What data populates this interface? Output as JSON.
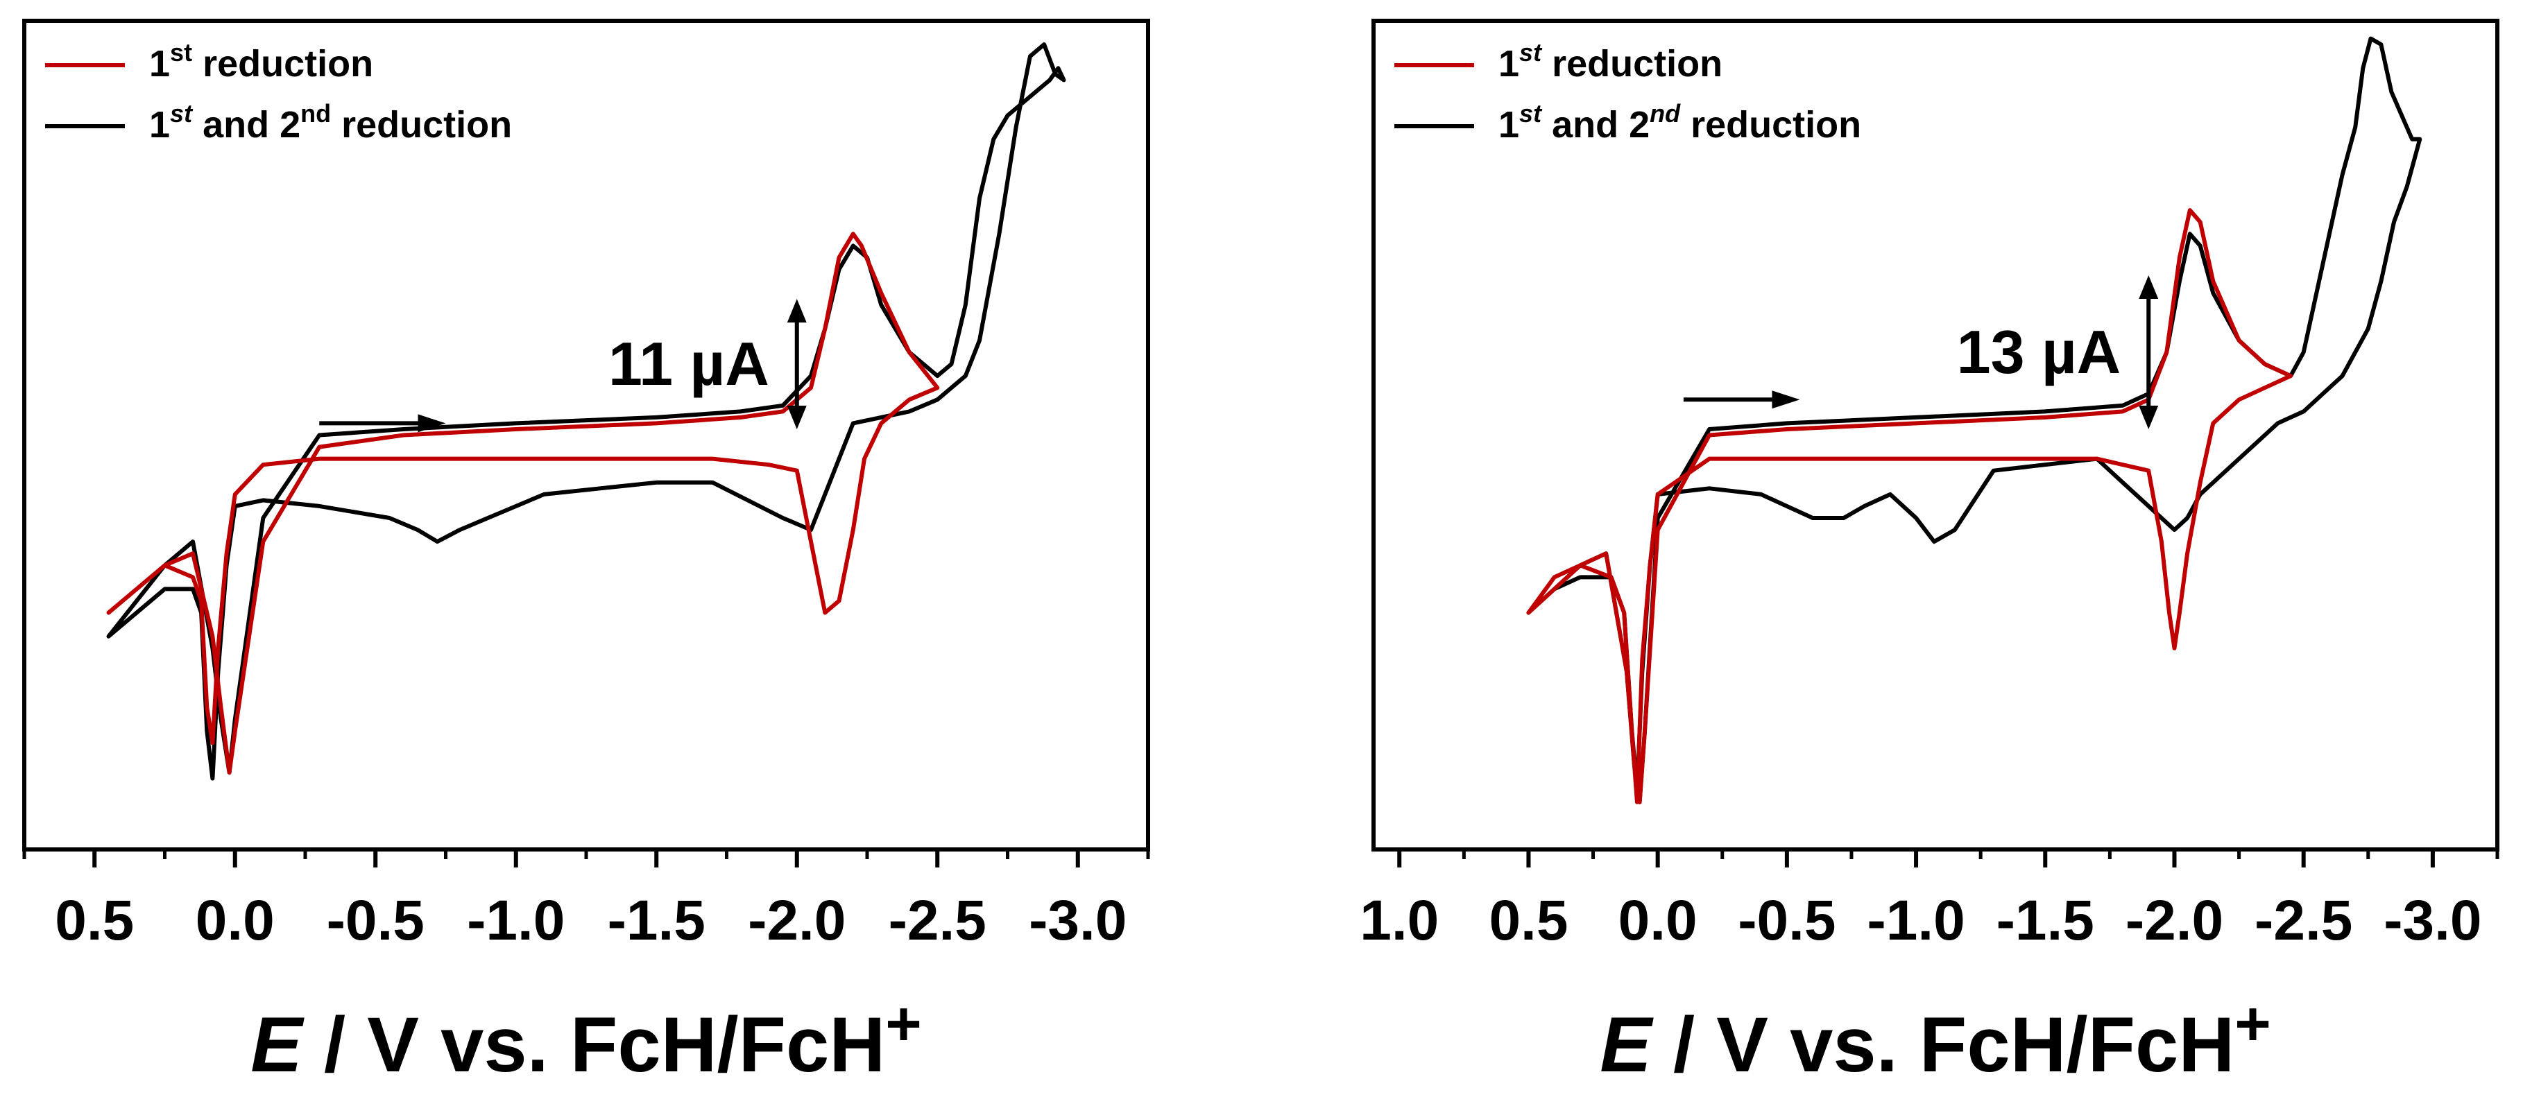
{
  "chart_data": [
    {
      "type": "line",
      "title": "",
      "xlabel_italic": "E",
      "xlabel_rest": " / V vs. FcH/FcH",
      "xlabel_sup": "+",
      "ylabel": "",
      "x_reversed": true,
      "xlim": [
        0.75,
        -3.25
      ],
      "ylim": [
        -30,
        40
      ],
      "xticks": [
        0.5,
        0.0,
        -0.5,
        -1.0,
        -1.5,
        -2.0,
        -2.5,
        -3.0
      ],
      "xtick_labels": [
        "0.5",
        "0.0",
        "-0.5",
        "-1.0",
        "-1.5",
        "-2.0",
        "-2.5",
        "-3.0"
      ],
      "legend": {
        "position": "top-left",
        "entries": [
          {
            "base": "1",
            "sup": "st",
            "sup_italic": false,
            "mid": " reduction",
            "sup2": "",
            "sup2_italic": false,
            "tail": "",
            "color": "#c00000"
          },
          {
            "base": "1",
            "sup": "st",
            "sup_italic": true,
            "mid": " and 2",
            "sup2": "nd",
            "sup2_italic": false,
            "tail": " reduction",
            "color": "#000000"
          }
        ]
      },
      "annotation": {
        "label": "11 µA",
        "scale_uA": 11,
        "arrow_x": -2.0,
        "arrow_y_center": 11
      },
      "scan_arrow": {
        "from_x": -0.3,
        "to_x": -0.75,
        "y": 6
      },
      "series": [
        {
          "name": "1st reduction",
          "color": "#c00000",
          "x": [
            0.45,
            0.35,
            0.25,
            0.15,
            0.08,
            0.05,
            0.02,
            0.0,
            -0.1,
            -0.3,
            -0.6,
            -1.0,
            -1.5,
            -1.8,
            -1.95,
            -2.05,
            -2.1,
            -2.15,
            -2.2,
            -2.23,
            -2.3,
            -2.4,
            -2.5,
            -2.4,
            -2.3,
            -2.24,
            -2.2,
            -2.15,
            -2.1,
            -2.05,
            -2.0,
            -1.9,
            -1.7,
            -1.4,
            -1.0,
            -0.6,
            -0.3,
            -0.1,
            0.0,
            0.03,
            0.06,
            0.08,
            0.1,
            0.12,
            0.15,
            0.25,
            0.35,
            0.45
          ],
          "y": [
            -10,
            -8,
            -6,
            -5,
            -12,
            -18,
            -23.5,
            -20,
            -4,
            4,
            5,
            5.5,
            6,
            6.5,
            7,
            9,
            14,
            20,
            22,
            21,
            17,
            12,
            9,
            8,
            6,
            3,
            -3,
            -9,
            -10,
            -4,
            2,
            2.5,
            3,
            3,
            3,
            3,
            3,
            2.5,
            0,
            -5,
            -13,
            -21,
            -18,
            -9,
            -7,
            -6,
            -8,
            -10
          ]
        },
        {
          "name": "1st and 2nd reduction",
          "color": "#000000",
          "x": [
            0.45,
            0.35,
            0.25,
            0.15,
            0.08,
            0.05,
            0.02,
            0.0,
            -0.1,
            -0.3,
            -0.6,
            -1.0,
            -1.5,
            -1.8,
            -1.95,
            -2.05,
            -2.1,
            -2.15,
            -2.2,
            -2.25,
            -2.3,
            -2.4,
            -2.5,
            -2.55,
            -2.6,
            -2.65,
            -2.7,
            -2.75,
            -2.8,
            -2.85,
            -2.9,
            -2.93,
            -2.95,
            -2.92,
            -2.88,
            -2.83,
            -2.78,
            -2.72,
            -2.65,
            -2.6,
            -2.55,
            -2.5,
            -2.4,
            -2.3,
            -2.2,
            -2.15,
            -2.1,
            -2.05,
            -1.95,
            -1.7,
            -1.5,
            -1.3,
            -1.1,
            -0.9,
            -0.8,
            -0.72,
            -0.65,
            -0.55,
            -0.3,
            -0.1,
            0.0,
            0.03,
            0.06,
            0.08,
            0.1,
            0.12,
            0.15,
            0.25,
            0.35,
            0.45
          ],
          "y": [
            -12,
            -9,
            -6,
            -4,
            -13,
            -19,
            -23.5,
            -19,
            -2,
            5,
            5.5,
            6,
            6.5,
            7,
            7.5,
            10,
            14,
            19,
            21,
            20,
            16,
            12,
            10,
            11,
            16,
            25,
            30,
            32,
            33,
            34,
            35,
            36,
            35,
            35.5,
            38,
            37,
            31,
            22,
            13,
            10,
            9,
            8,
            7,
            6.5,
            6,
            3,
            0,
            -3,
            -2,
            1,
            1,
            0.5,
            0,
            -2,
            -3,
            -4,
            -3,
            -2,
            -1,
            -0.5,
            -1,
            -6,
            -15,
            -24,
            -20,
            -10,
            -8,
            -8,
            -10,
            -12
          ]
        }
      ]
    },
    {
      "type": "line",
      "title": "",
      "xlabel_italic": "E",
      "xlabel_rest": " / V vs. FcH/FcH",
      "xlabel_sup": "+",
      "ylabel": "",
      "x_reversed": true,
      "xlim": [
        1.1,
        -3.25
      ],
      "ylim": [
        -30,
        40
      ],
      "xticks": [
        1.0,
        0.5,
        0.0,
        -0.5,
        -1.0,
        -1.5,
        -2.0,
        -2.5,
        -3.0
      ],
      "xtick_labels": [
        "1.0",
        "0.5",
        "0.0",
        "-0.5",
        "-1.0",
        "-1.5",
        "-2.0",
        "-2.5",
        "-3.0"
      ],
      "legend": {
        "position": "top-left",
        "entries": [
          {
            "base": "1",
            "sup": "st",
            "sup_italic": true,
            "mid": " reduction",
            "sup2": "",
            "sup2_italic": false,
            "tail": "",
            "color": "#c00000"
          },
          {
            "base": "1",
            "sup": "st",
            "sup_italic": true,
            "mid": " and 2",
            "sup2": "nd",
            "sup2_italic": true,
            "tail": " reduction",
            "color": "#000000"
          }
        ]
      },
      "annotation": {
        "label": "13 µA",
        "scale_uA": 13,
        "arrow_x": -1.9,
        "arrow_y_center": 12
      },
      "scan_arrow": {
        "from_x": -0.1,
        "to_x": -0.55,
        "y": 8
      },
      "series": [
        {
          "name": "1st reduction",
          "color": "#c00000",
          "x": [
            0.5,
            0.4,
            0.3,
            0.2,
            0.12,
            0.09,
            0.07,
            0.05,
            0.0,
            -0.2,
            -0.5,
            -1.0,
            -1.5,
            -1.8,
            -1.9,
            -1.97,
            -2.02,
            -2.06,
            -2.1,
            -2.15,
            -2.25,
            -2.35,
            -2.45,
            -2.35,
            -2.25,
            -2.15,
            -2.1,
            -2.05,
            -2.02,
            -2.0,
            -1.98,
            -1.95,
            -1.9,
            -1.7,
            -1.4,
            -1.0,
            -0.6,
            -0.2,
            0.0,
            0.03,
            0.06,
            0.08,
            0.1,
            0.13,
            0.18,
            0.3,
            0.4,
            0.5
          ],
          "y": [
            -10,
            -8,
            -6,
            -5,
            -15,
            -23,
            -26,
            -20,
            -3,
            5,
            5.5,
            6,
            6.5,
            7,
            8,
            12,
            20,
            24,
            23,
            18,
            13,
            11,
            10,
            9,
            8,
            6,
            1,
            -5,
            -10,
            -13,
            -10,
            -4,
            2,
            3,
            3,
            3,
            3,
            3,
            0,
            -6,
            -14,
            -26,
            -20,
            -10,
            -7,
            -6,
            -7,
            -10
          ]
        },
        {
          "name": "1st and 2nd reduction",
          "color": "#000000",
          "x": [
            0.5,
            0.4,
            0.3,
            0.2,
            0.12,
            0.09,
            0.07,
            0.05,
            0.0,
            -0.2,
            -0.5,
            -1.0,
            -1.5,
            -1.8,
            -1.9,
            -1.97,
            -2.02,
            -2.06,
            -2.1,
            -2.15,
            -2.25,
            -2.35,
            -2.45,
            -2.5,
            -2.55,
            -2.6,
            -2.65,
            -2.7,
            -2.73,
            -2.76,
            -2.8,
            -2.84,
            -2.88,
            -2.92,
            -2.95,
            -2.9,
            -2.85,
            -2.8,
            -2.75,
            -2.7,
            -2.65,
            -2.6,
            -2.55,
            -2.5,
            -2.4,
            -2.3,
            -2.2,
            -2.1,
            -2.05,
            -2.0,
            -1.95,
            -1.85,
            -1.7,
            -1.3,
            -1.15,
            -1.07,
            -1.0,
            -0.9,
            -0.8,
            -0.72,
            -0.6,
            -0.4,
            -0.2,
            0.0,
            0.03,
            0.06,
            0.08,
            0.1,
            0.13,
            0.18,
            0.3,
            0.4,
            0.5
          ],
          "y": [
            -10,
            -8,
            -6,
            -5,
            -15,
            -23,
            -26,
            -20,
            -2,
            5.5,
            6,
            6.5,
            7,
            7.5,
            8.5,
            12,
            18,
            22,
            21,
            17,
            13,
            11,
            10,
            12,
            17,
            22,
            27,
            31,
            36,
            38.5,
            38,
            34,
            32,
            30,
            30,
            26,
            23,
            18,
            14,
            12,
            10,
            9,
            8,
            7,
            6,
            4,
            2,
            0,
            -2,
            -3,
            -2,
            0,
            3,
            2,
            -3,
            -4,
            -2,
            0,
            -1,
            -2,
            -2,
            0,
            0.5,
            0,
            -6,
            -15,
            -25,
            -20,
            -10,
            -7,
            -7,
            -8,
            -10
          ]
        }
      ]
    }
  ]
}
